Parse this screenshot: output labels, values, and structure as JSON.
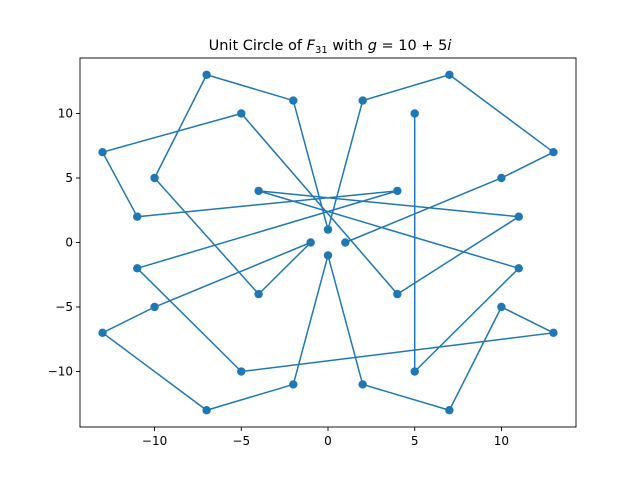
{
  "chart_data": {
    "type": "line",
    "title_prefix": "Unit Circle of ",
    "title_var": "F",
    "title_sub": "31",
    "title_mid": " with ",
    "title_g": "g",
    "title_eq": " = 10 + 5",
    "title_i": "i",
    "xlabel": "",
    "ylabel": "",
    "xlim": [
      -14.3,
      14.3
    ],
    "ylim": [
      -14.3,
      14.3
    ],
    "xticks": [
      -10,
      -5,
      0,
      5,
      10
    ],
    "xtick_labels": [
      "−10",
      "−5",
      "0",
      "5",
      "10"
    ],
    "yticks": [
      -10,
      -5,
      0,
      5,
      10
    ],
    "ytick_labels": [
      "−10",
      "−5",
      "0",
      "5",
      "10"
    ],
    "grid": false,
    "color": "#1f77b4",
    "series": [
      {
        "name": "unit circle",
        "marker": "o",
        "points": [
          [
            1,
            0
          ],
          [
            10,
            5
          ],
          [
            13,
            7
          ],
          [
            7,
            13
          ],
          [
            2,
            11
          ],
          [
            0,
            1
          ],
          [
            -2,
            11
          ],
          [
            -7,
            13
          ],
          [
            -10,
            5
          ],
          [
            -4,
            -4
          ],
          [
            -1,
            0
          ],
          [
            -10,
            -5
          ],
          [
            -13,
            -7
          ],
          [
            -7,
            -13
          ],
          [
            -2,
            -11
          ],
          [
            0,
            -1
          ],
          [
            2,
            -11
          ],
          [
            7,
            -13
          ],
          [
            10,
            -5
          ],
          [
            13,
            -7
          ],
          [
            -5,
            -10
          ],
          [
            -11,
            -2
          ],
          [
            4,
            4
          ],
          [
            -11,
            2
          ],
          [
            -13,
            7
          ],
          [
            -5,
            10
          ],
          [
            4,
            -4
          ],
          [
            11,
            2
          ],
          [
            -4,
            4
          ],
          [
            11,
            -2
          ],
          [
            5,
            -10
          ],
          [
            5,
            10
          ]
        ]
      }
    ]
  }
}
